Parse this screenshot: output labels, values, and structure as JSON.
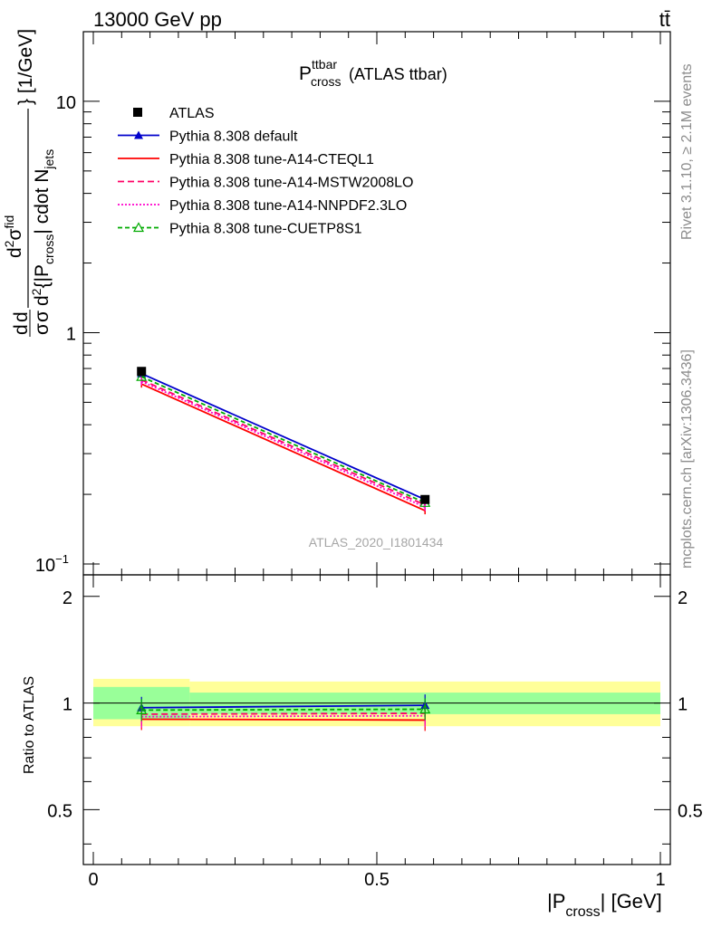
{
  "header": {
    "energy_label": "13000 GeV pp",
    "process_label": "tt̄"
  },
  "side_labels": {
    "rivet": "Rivet 3.1.10, ≥ 2.1M events",
    "mcplots": "mcplots.cern.ch [arXiv:1306.3436]"
  },
  "watermark": "ATLAS_2020_I1801434",
  "chart_data": [
    {
      "panel": "main",
      "type": "line",
      "title_main": "P",
      "title_sup": "ttbar",
      "title_sub": "cross",
      "title_suffix": "(ATLAS ttbar)",
      "ylabel": "d²σ/d²{|P_cross| cdot N_jets} [1/GeV]",
      "ylabel_parts": {
        "top1": "d",
        "top1_sup": "2",
        "top2": "σ",
        "top2_sup": "fid",
        "bot1": "d",
        "bot1_sup": "2",
        "bot2": "{|P",
        "bot2_sub": "cross",
        "bot3": "| cdot N",
        "bot3_sub": "jets",
        "unit": "} [1/GeV]"
      },
      "y_scale": "log",
      "xlim": [
        0,
        1
      ],
      "ylim": [
        0.1,
        20
      ],
      "y_ticks": [
        {
          "value": 0.1,
          "label": "10",
          "sup": "−1"
        },
        {
          "value": 1,
          "label": "1",
          "sup": ""
        },
        {
          "value": 10,
          "label": "10",
          "sup": ""
        }
      ],
      "x": [
        0.085,
        0.585
      ],
      "data_series": {
        "name": "ATLAS",
        "values": [
          0.68,
          0.19
        ],
        "color": "#000000"
      },
      "series": [
        {
          "name": "Pythia 8.308 default",
          "values": [
            0.665,
            0.19
          ],
          "color": "#0000cc",
          "dash": "",
          "marker": "triangle-filled"
        },
        {
          "name": "Pythia 8.308 tune-A14-CTEQL1",
          "values": [
            0.6,
            0.17
          ],
          "color": "#ff0000",
          "dash": "",
          "marker": "none"
        },
        {
          "name": "Pythia 8.308 tune-A14-MSTW2008LO",
          "values": [
            0.625,
            0.18
          ],
          "color": "#ff0066",
          "dash": "7,4",
          "marker": "none"
        },
        {
          "name": "Pythia 8.308 tune-A14-NNPDF2.3LO",
          "values": [
            0.615,
            0.176
          ],
          "color": "#ff00cc",
          "dash": "2,2",
          "marker": "none"
        },
        {
          "name": "Pythia 8.308 tune-CUETP8S1",
          "values": [
            0.645,
            0.184
          ],
          "color": "#00aa00",
          "dash": "5,3",
          "marker": "triangle-open"
        }
      ],
      "legend_position": "top-left"
    },
    {
      "panel": "ratio",
      "type": "line",
      "ylabel": "Ratio to ATLAS",
      "xlabel_main": "|P",
      "xlabel_sub": "cross",
      "xlabel_suffix": "| [GeV]",
      "xlim": [
        0,
        1
      ],
      "ylim": [
        0.35,
        2.3
      ],
      "y_ticks": [
        0.5,
        1,
        2
      ],
      "y_tick_labels": [
        "0.5",
        "1",
        "2"
      ],
      "x_ticks": [
        0,
        0.5,
        1
      ],
      "x_tick_labels": [
        "0",
        "0.5",
        "1"
      ],
      "x": [
        0.085,
        0.585
      ],
      "bands": {
        "inner_color": "#99ff99",
        "outer_color": "#ffff99",
        "edges": [
          0,
          0.17,
          1
        ],
        "inner": [
          [
            0.9,
            1.11
          ],
          [
            0.93,
            1.07
          ]
        ],
        "outer": [
          [
            0.86,
            1.17
          ],
          [
            0.86,
            1.15
          ]
        ]
      },
      "series": [
        {
          "name": "Pythia 8.308 default",
          "values": [
            0.97,
            0.985
          ]
        },
        {
          "name": "Pythia 8.308 tune-A14-CTEQL1",
          "values": [
            0.9,
            0.895
          ]
        },
        {
          "name": "Pythia 8.308 tune-A14-MSTW2008LO",
          "values": [
            0.93,
            0.935
          ]
        },
        {
          "name": "Pythia 8.308 tune-A14-NNPDF2.3LO",
          "values": [
            0.915,
            0.92
          ]
        },
        {
          "name": "Pythia 8.308 tune-CUETP8S1",
          "values": [
            0.955,
            0.96
          ]
        }
      ]
    }
  ]
}
